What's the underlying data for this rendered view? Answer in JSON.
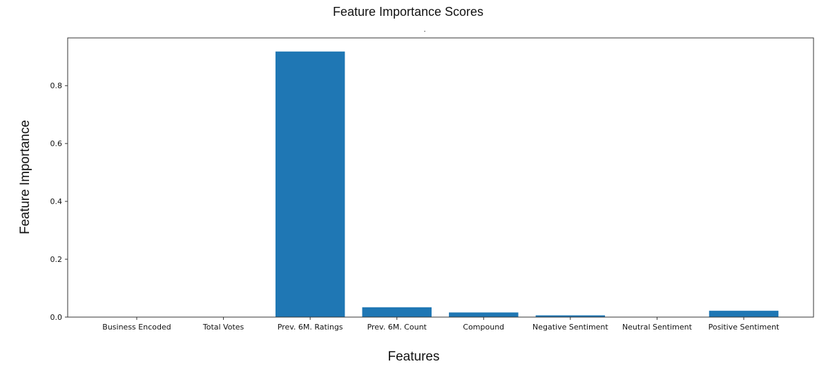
{
  "chart_data": {
    "type": "bar",
    "title": "Feature Importance Scores",
    "subtitle": ".",
    "xlabel": "Features",
    "ylabel": "Feature Importance",
    "categories": [
      "Business Encoded",
      "Total Votes",
      "Prev. 6M. Ratings",
      "Prev. 6M. Count",
      "Compound",
      "Negative Sentiment",
      "Neutral Sentiment",
      "Positive Sentiment"
    ],
    "values": [
      0.0,
      0.0,
      0.918,
      0.034,
      0.016,
      0.006,
      0.0,
      0.022
    ],
    "ylim": [
      0,
      0.965
    ],
    "yticks": [
      0.0,
      0.2,
      0.4,
      0.6,
      0.8
    ],
    "ytick_labels": [
      "0.0",
      "0.2",
      "0.4",
      "0.6",
      "0.8"
    ],
    "grid": false,
    "bar_color": "#1f77b4"
  }
}
